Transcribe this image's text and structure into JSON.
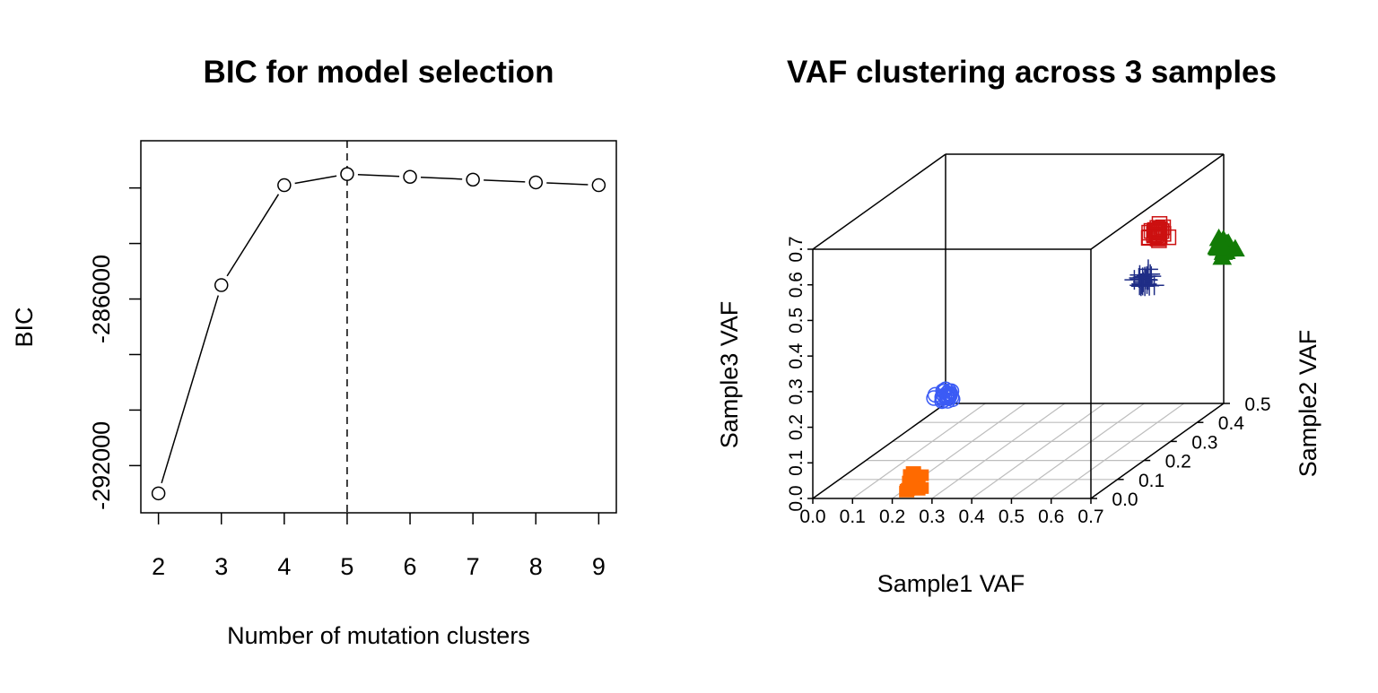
{
  "chart_data": [
    {
      "type": "line",
      "title": "BIC for model selection",
      "xlabel": "Number of mutation clusters",
      "ylabel": "BIC",
      "x": [
        2,
        3,
        4,
        5,
        6,
        7,
        8,
        9
      ],
      "series": [
        {
          "values": [
            -293000,
            -285500,
            -281900,
            -281500,
            -281600,
            -281700,
            -281800,
            -281900
          ]
        }
      ],
      "xticks": [
        "2",
        "3",
        "4",
        "5",
        "6",
        "7",
        "8",
        "9"
      ],
      "yticks": [
        "-292000",
        "-286000"
      ],
      "xlim": [
        1.72,
        9.28
      ],
      "ylim": [
        -293700,
        -280300
      ],
      "selected_x": 5,
      "marker": "open-circle",
      "line_color": "#000000"
    },
    {
      "type": "scatter",
      "title": "VAF clustering across 3 samples",
      "xlabel": "Sample1 VAF",
      "ylabel": "Sample2 VAF",
      "zlabel": "Sample3 VAF",
      "xticks": [
        "0.0",
        "0.1",
        "0.2",
        "0.3",
        "0.4",
        "0.5",
        "0.6",
        "0.7"
      ],
      "yticks": [
        "0.0",
        "0.1",
        "0.2",
        "0.3",
        "0.4",
        "0.5"
      ],
      "zticks": [
        "0.0",
        "0.1",
        "0.2",
        "0.3",
        "0.4",
        "0.5",
        "0.6",
        "0.7"
      ],
      "xlim": [
        0,
        0.7
      ],
      "ylim": [
        0,
        0.5
      ],
      "zlim": [
        0,
        0.7
      ],
      "grid": "floor",
      "clusters": [
        {
          "color": "#3b5bf5",
          "marker": "open-circle",
          "center": [
            0.1,
            0.35,
            0.1
          ],
          "spread": 0.02,
          "count": 25
        },
        {
          "color": "#ff6a00",
          "marker": "filled-square",
          "center": [
            0.22,
            0.05,
            0.02
          ],
          "spread": 0.02,
          "count": 25
        },
        {
          "color": "#1f2d86",
          "marker": "plus",
          "center": [
            0.5,
            0.5,
            0.35
          ],
          "spread": 0.02,
          "count": 25
        },
        {
          "color": "#127b06",
          "marker": "filled-triangle",
          "center": [
            0.7,
            0.5,
            0.44
          ],
          "spread": 0.02,
          "count": 25
        },
        {
          "color": "#cc1010",
          "marker": "open-square",
          "center": [
            0.7,
            0.25,
            0.61
          ],
          "spread": 0.02,
          "count": 25
        }
      ]
    }
  ]
}
